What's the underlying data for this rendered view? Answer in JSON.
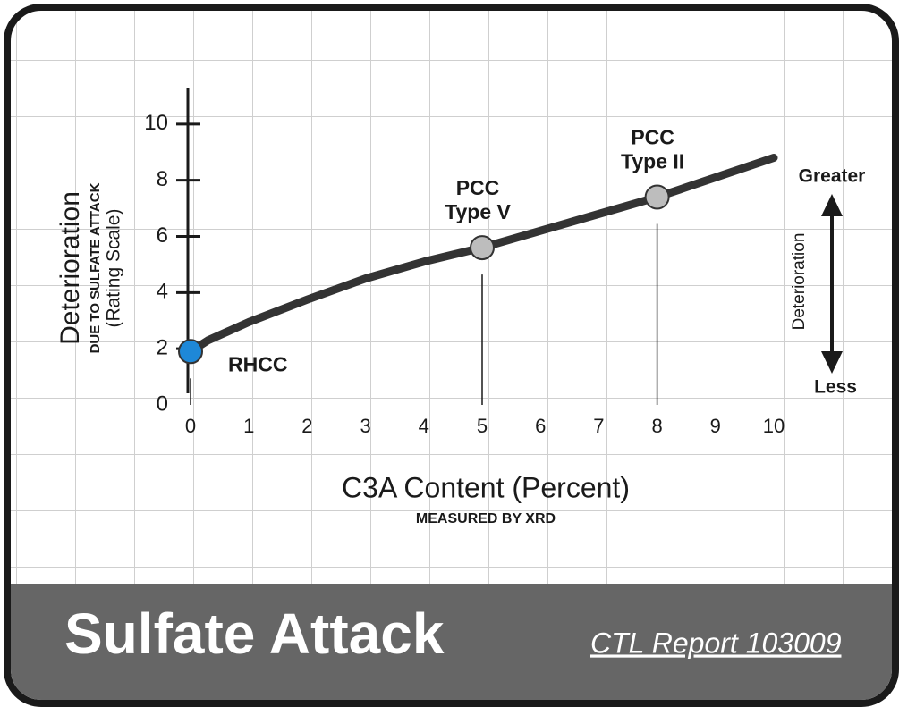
{
  "chart_data": {
    "type": "line",
    "title": "Sulfate Attack",
    "subtitle": "CTL Report 103009",
    "x_label": "C3A Content (Percent)",
    "x_sublabel": "MEASURED BY XRD",
    "y_label": "Deterioration",
    "y_label_2": "DUE TO SULFATE ATTACK",
    "y_label_3": "(Rating Scale)",
    "x": [
      0,
      0.3,
      1,
      2,
      3,
      4,
      5,
      6,
      7,
      8,
      9,
      10
    ],
    "series": [
      {
        "color": "#333333",
        "values": [
          1.9,
          2.3,
          2.95,
          3.75,
          4.5,
          5.1,
          5.6,
          6.2,
          6.8,
          7.4,
          8.1,
          8.8
        ]
      }
    ],
    "points": [
      {
        "label": [
          "RHCC"
        ],
        "x": 0,
        "y": 1.9,
        "color": "#1e88d8"
      },
      {
        "label": [
          "PCC",
          "Type V"
        ],
        "x": 5,
        "y": 5.6,
        "color": "#bdbdbd"
      },
      {
        "label": [
          "PCC",
          "Type II"
        ],
        "x": 8,
        "y": 7.4,
        "color": "#bdbdbd"
      }
    ],
    "scale_legend": {
      "top": "Greater",
      "middle": "Deterioration",
      "bottom": "Less"
    },
    "xlim": [
      0,
      10
    ],
    "xticks": [
      0,
      1,
      2,
      3,
      4,
      5,
      6,
      7,
      8,
      9,
      10
    ],
    "ylim": [
      0,
      11.3
    ],
    "yticks": [
      0,
      2,
      4,
      6,
      8,
      10
    ]
  }
}
